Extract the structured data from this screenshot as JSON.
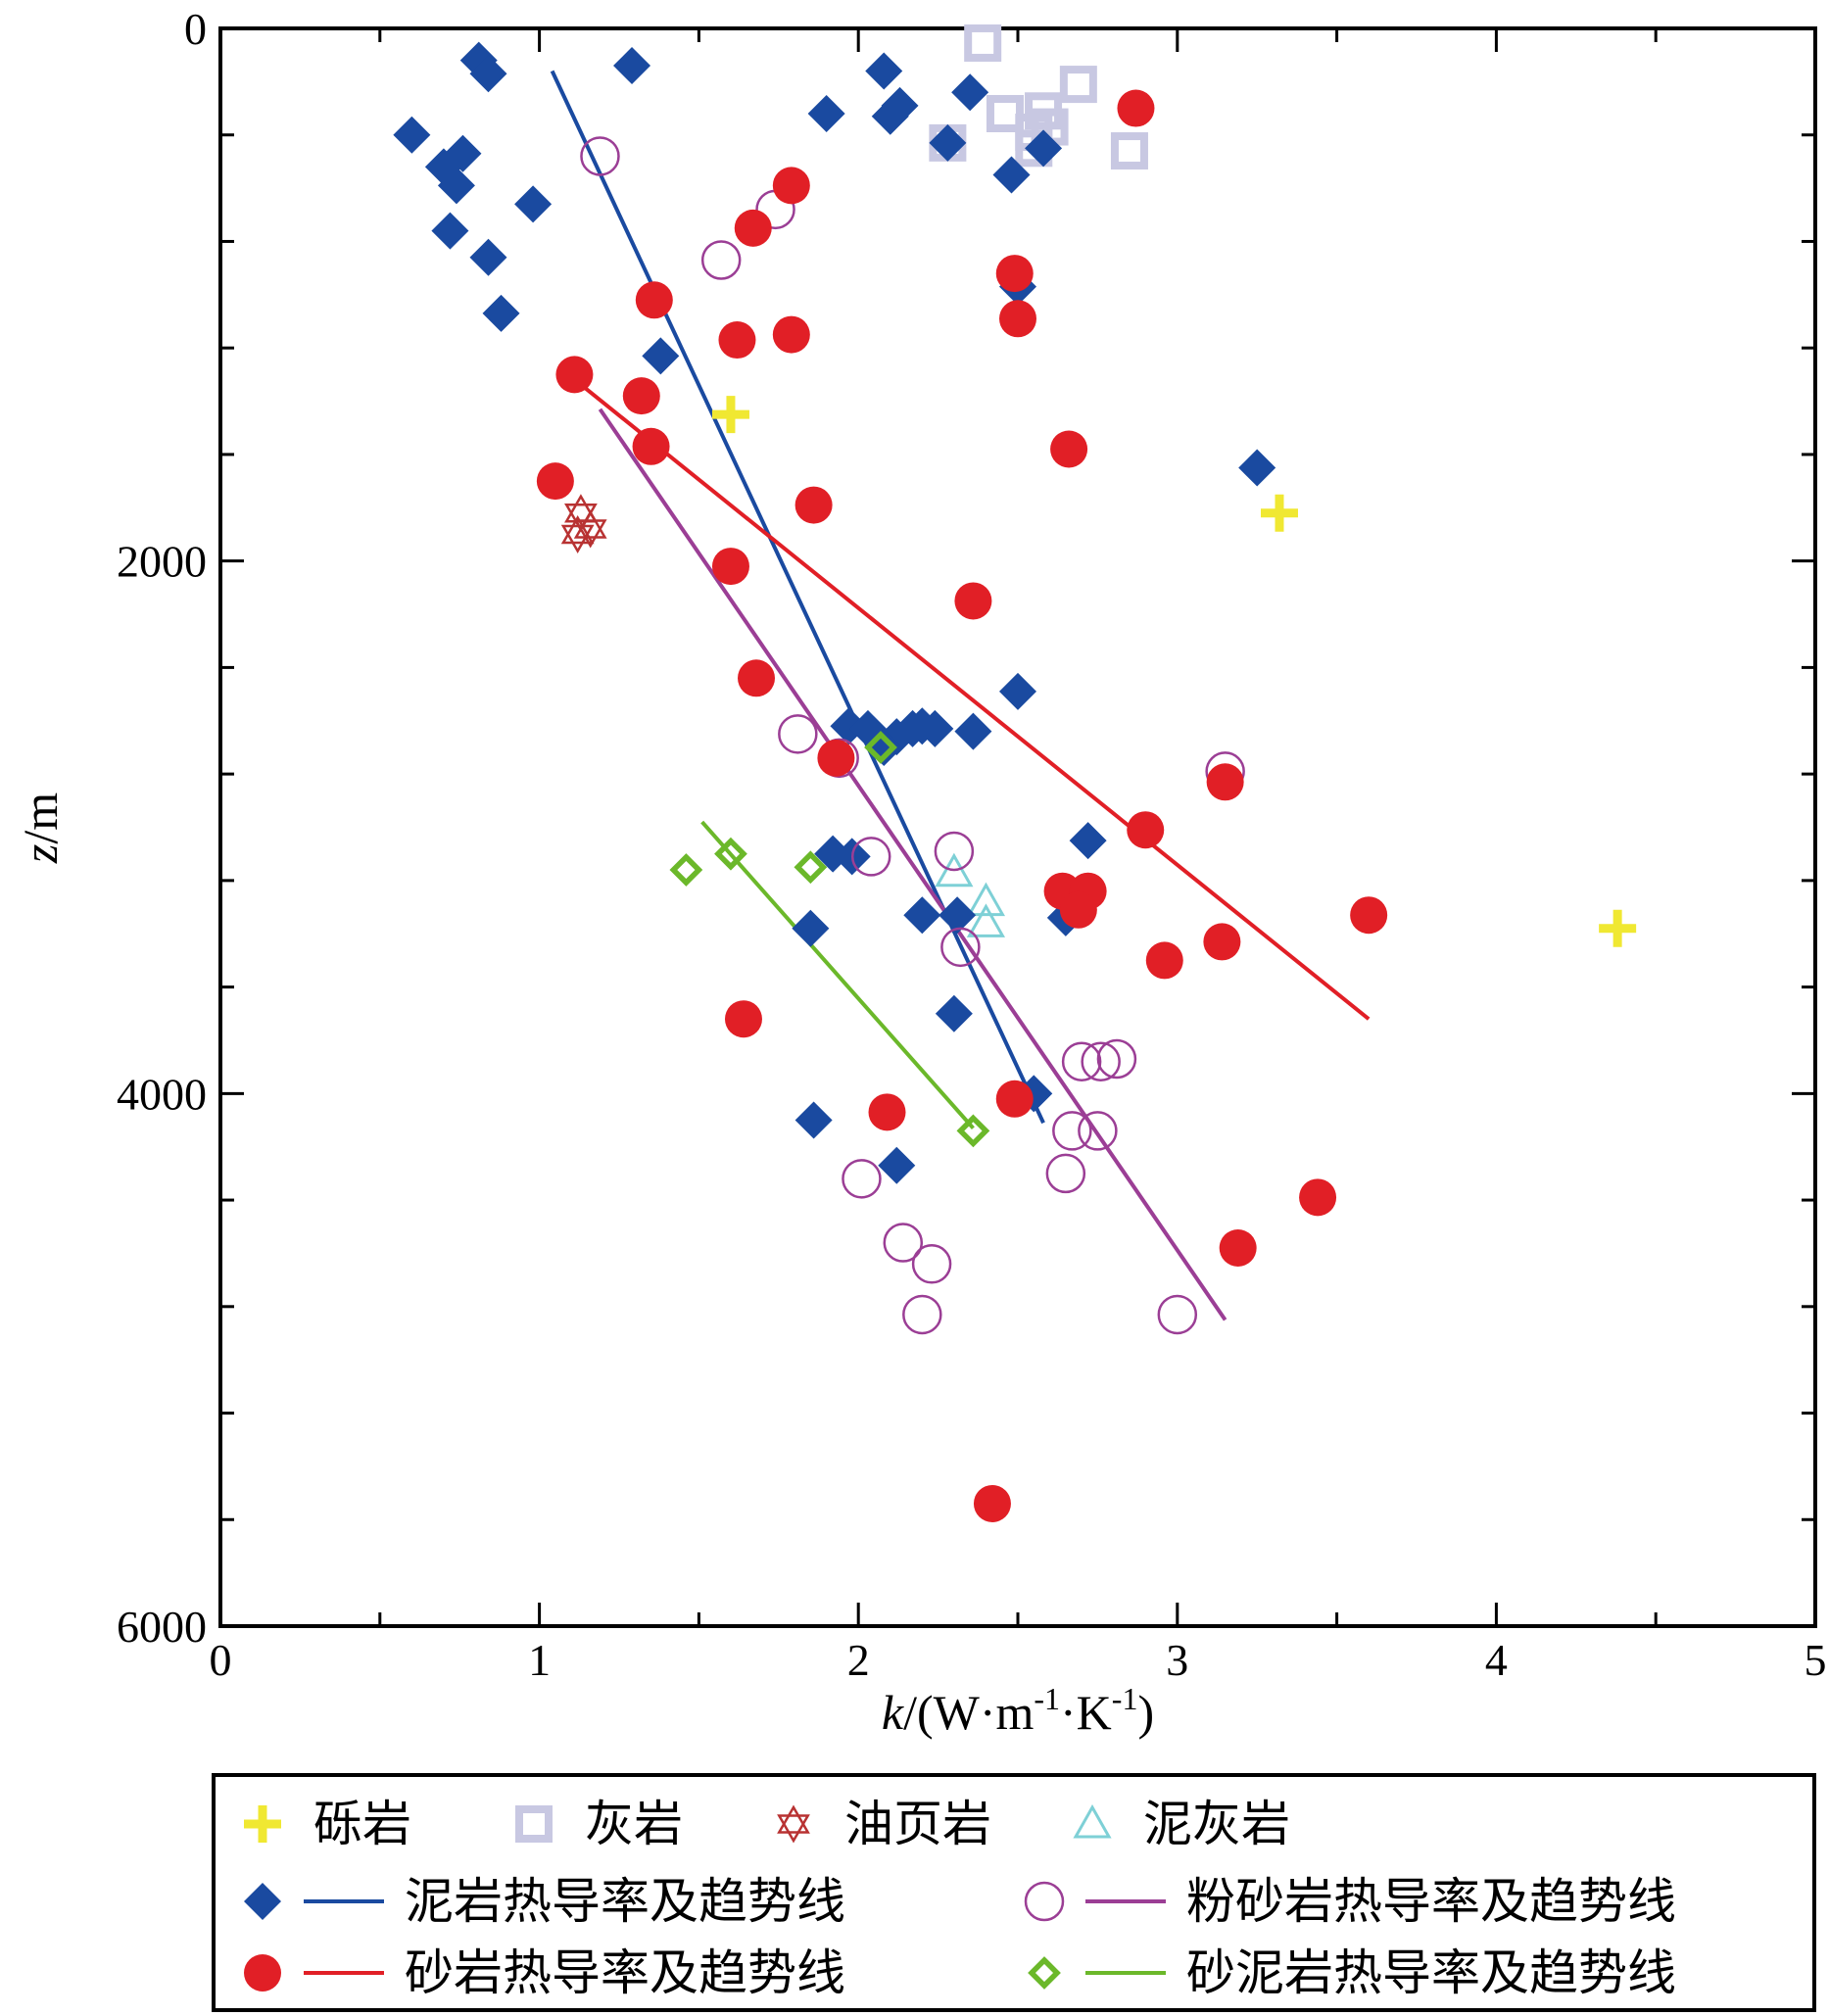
{
  "chart_data": {
    "type": "scatter",
    "xlabel_parts": [
      "k",
      "/(W·m",
      "-1",
      "·K",
      "-1",
      ")"
    ],
    "ylabel_parts": [
      "z",
      "/m"
    ],
    "xlim": [
      0,
      5
    ],
    "ylim": [
      0,
      6000
    ],
    "y_inverted": true,
    "x_ticks": [
      "0",
      "1",
      "2",
      "3",
      "4",
      "5"
    ],
    "y_ticks": [
      "0",
      "2000",
      "4000",
      "6000"
    ],
    "colors": {
      "conglomerate": "#f0e832",
      "limestone": "#c8c8e2",
      "oil_shale": "#b83232",
      "marl": "#7ed0d6",
      "mudstone": "#1a4aa0",
      "silt": "#9b3e95",
      "sandstone": "#e11f26",
      "sandy_mud": "#6bb82a"
    },
    "series": [
      {
        "key": "conglomerate",
        "name": "砾岩",
        "marker": "plus",
        "color": "#f0e832",
        "points": [
          [
            1.6,
            1450
          ],
          [
            3.32,
            1820
          ],
          [
            4.38,
            3380
          ]
        ]
      },
      {
        "key": "limestone",
        "name": "灰岩",
        "marker": "square-open",
        "color": "#c8c8e2",
        "points": [
          [
            2.39,
            55
          ],
          [
            2.69,
            210
          ],
          [
            2.46,
            320
          ],
          [
            2.58,
            310
          ],
          [
            2.6,
            370
          ],
          [
            2.55,
            390
          ],
          [
            2.28,
            430
          ],
          [
            2.55,
            450
          ],
          [
            2.85,
            460
          ]
        ]
      },
      {
        "key": "oil_shale",
        "name": "油页岩",
        "marker": "star-open",
        "color": "#b83232",
        "points": [
          [
            1.13,
            1820
          ],
          [
            1.16,
            1880
          ],
          [
            1.12,
            1900
          ]
        ]
      },
      {
        "key": "marl",
        "name": "泥灰岩",
        "marker": "triangle-open",
        "color": "#7ed0d6",
        "points": [
          [
            2.3,
            3170
          ],
          [
            2.4,
            3280
          ],
          [
            2.4,
            3360
          ]
        ]
      },
      {
        "key": "mudstone",
        "name": "泥岩热导率及趋势线",
        "marker": "diamond",
        "color": "#1a4aa0",
        "points": [
          [
            0.81,
            120
          ],
          [
            0.84,
            170
          ],
          [
            1.29,
            140
          ],
          [
            2.08,
            160
          ],
          [
            2.35,
            240
          ],
          [
            2.13,
            290
          ],
          [
            2.1,
            330
          ],
          [
            1.9,
            320
          ],
          [
            2.28,
            430
          ],
          [
            2.58,
            450
          ],
          [
            0.6,
            400
          ],
          [
            0.76,
            470
          ],
          [
            0.7,
            520
          ],
          [
            0.74,
            590
          ],
          [
            0.98,
            660
          ],
          [
            2.48,
            550
          ],
          [
            0.72,
            760
          ],
          [
            0.84,
            860
          ],
          [
            0.88,
            1070
          ],
          [
            2.5,
            970
          ],
          [
            1.38,
            1230
          ],
          [
            3.25,
            1650
          ],
          [
            2.5,
            2490
          ],
          [
            1.97,
            2620
          ],
          [
            2.03,
            2630
          ],
          [
            2.17,
            2630
          ],
          [
            2.2,
            2620
          ],
          [
            2.24,
            2630
          ],
          [
            2.36,
            2640
          ],
          [
            2.12,
            2660
          ],
          [
            2.08,
            2700
          ],
          [
            2.72,
            3050
          ],
          [
            1.92,
            3100
          ],
          [
            1.98,
            3110
          ],
          [
            2.2,
            3330
          ],
          [
            2.31,
            3330
          ],
          [
            2.65,
            3340
          ],
          [
            1.85,
            3380
          ],
          [
            2.3,
            3700
          ],
          [
            2.55,
            4000
          ],
          [
            1.86,
            4100
          ],
          [
            2.12,
            4270
          ]
        ]
      },
      {
        "key": "silt",
        "name": "粉砂岩热导率及趋势线",
        "marker": "circle-open",
        "color": "#9b3e95",
        "points": [
          [
            1.19,
            480
          ],
          [
            1.74,
            680
          ],
          [
            1.57,
            870
          ],
          [
            1.81,
            2650
          ],
          [
            1.94,
            2740
          ],
          [
            3.15,
            2790
          ],
          [
            2.3,
            3090
          ],
          [
            2.04,
            3110
          ],
          [
            2.32,
            3450
          ],
          [
            2.7,
            3880
          ],
          [
            2.76,
            3880
          ],
          [
            2.81,
            3870
          ],
          [
            2.67,
            4140
          ],
          [
            2.75,
            4140
          ],
          [
            2.65,
            4300
          ],
          [
            2.01,
            4320
          ],
          [
            2.14,
            4560
          ],
          [
            2.23,
            4640
          ],
          [
            2.2,
            4830
          ],
          [
            3.0,
            4830
          ]
        ]
      },
      {
        "key": "sandstone",
        "name": "砂岩热导率及趋势线",
        "marker": "circle",
        "color": "#e11f26",
        "points": [
          [
            2.87,
            300
          ],
          [
            1.79,
            590
          ],
          [
            1.67,
            750
          ],
          [
            2.49,
            920
          ],
          [
            1.36,
            1020
          ],
          [
            2.5,
            1090
          ],
          [
            1.62,
            1170
          ],
          [
            1.79,
            1150
          ],
          [
            1.11,
            1300
          ],
          [
            1.32,
            1380
          ],
          [
            1.35,
            1570
          ],
          [
            2.66,
            1580
          ],
          [
            1.05,
            1700
          ],
          [
            1.86,
            1790
          ],
          [
            1.6,
            2020
          ],
          [
            2.36,
            2150
          ],
          [
            1.68,
            2440
          ],
          [
            1.93,
            2740
          ],
          [
            3.15,
            2830
          ],
          [
            2.9,
            3010
          ],
          [
            2.64,
            3240
          ],
          [
            2.72,
            3240
          ],
          [
            2.69,
            3310
          ],
          [
            3.6,
            3330
          ],
          [
            3.14,
            3430
          ],
          [
            2.96,
            3500
          ],
          [
            1.64,
            3720
          ],
          [
            2.49,
            4020
          ],
          [
            2.09,
            4070
          ],
          [
            3.44,
            4390
          ],
          [
            3.19,
            4580
          ],
          [
            2.42,
            5540
          ]
        ]
      },
      {
        "key": "sandy_mud",
        "name": "砂泥岩热导率及趋势线",
        "marker": "diamond-open",
        "color": "#6bb82a",
        "points": [
          [
            2.07,
            2700
          ],
          [
            1.6,
            3100
          ],
          [
            1.85,
            3150
          ],
          [
            1.46,
            3160
          ],
          [
            2.36,
            4140
          ]
        ]
      }
    ],
    "trendlines": [
      {
        "key": "mudstone",
        "color": "#1a4aa0",
        "from": [
          1.04,
          160
        ],
        "to": [
          2.58,
          4110
        ]
      },
      {
        "key": "sandstone",
        "color": "#e11f26",
        "from": [
          1.06,
          1270
        ],
        "to": [
          3.6,
          3720
        ]
      },
      {
        "key": "silt",
        "color": "#9b3e95",
        "from": [
          1.19,
          1430
        ],
        "to": [
          3.15,
          4850
        ]
      },
      {
        "key": "sandy_mud",
        "color": "#6bb82a",
        "from": [
          1.51,
          2980
        ],
        "to": [
          2.36,
          4130
        ]
      }
    ],
    "legend_position": "bottom"
  }
}
